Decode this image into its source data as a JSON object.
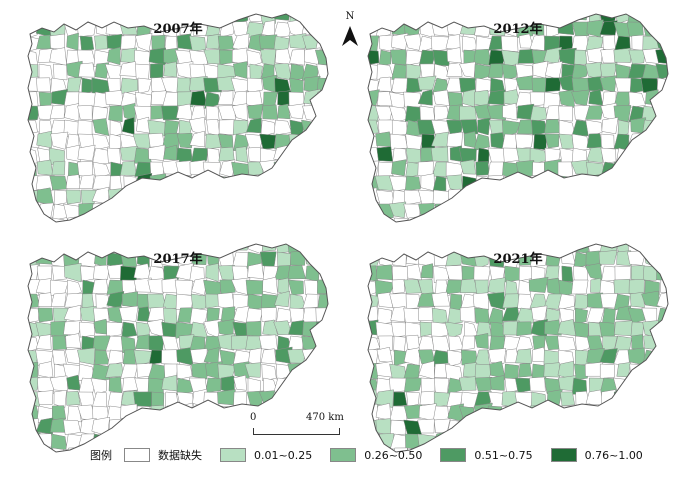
{
  "panels": [
    {
      "title": "2007年"
    },
    {
      "title": "2012年"
    },
    {
      "title": "2017年"
    },
    {
      "title": "2021年"
    }
  ],
  "north_label": "N",
  "scale": {
    "start": "0",
    "end": "470 km"
  },
  "legend": {
    "title": "图例",
    "items": [
      {
        "label": "数据缺失",
        "color": "#ffffff"
      },
      {
        "label": "0.01~0.25",
        "color": "#b8e0c2"
      },
      {
        "label": "0.26~0.50",
        "color": "#7fbf8f"
      },
      {
        "label": "0.51~0.75",
        "color": "#4e9a63"
      },
      {
        "label": "0.76~1.00",
        "color": "#1f6b35"
      }
    ]
  },
  "colors": {
    "outline": "#555555",
    "none": "#ffffff",
    "c1": "#b8e0c2",
    "c2": "#7fbf8f",
    "c3": "#4e9a63",
    "c4": "#1f6b35"
  }
}
